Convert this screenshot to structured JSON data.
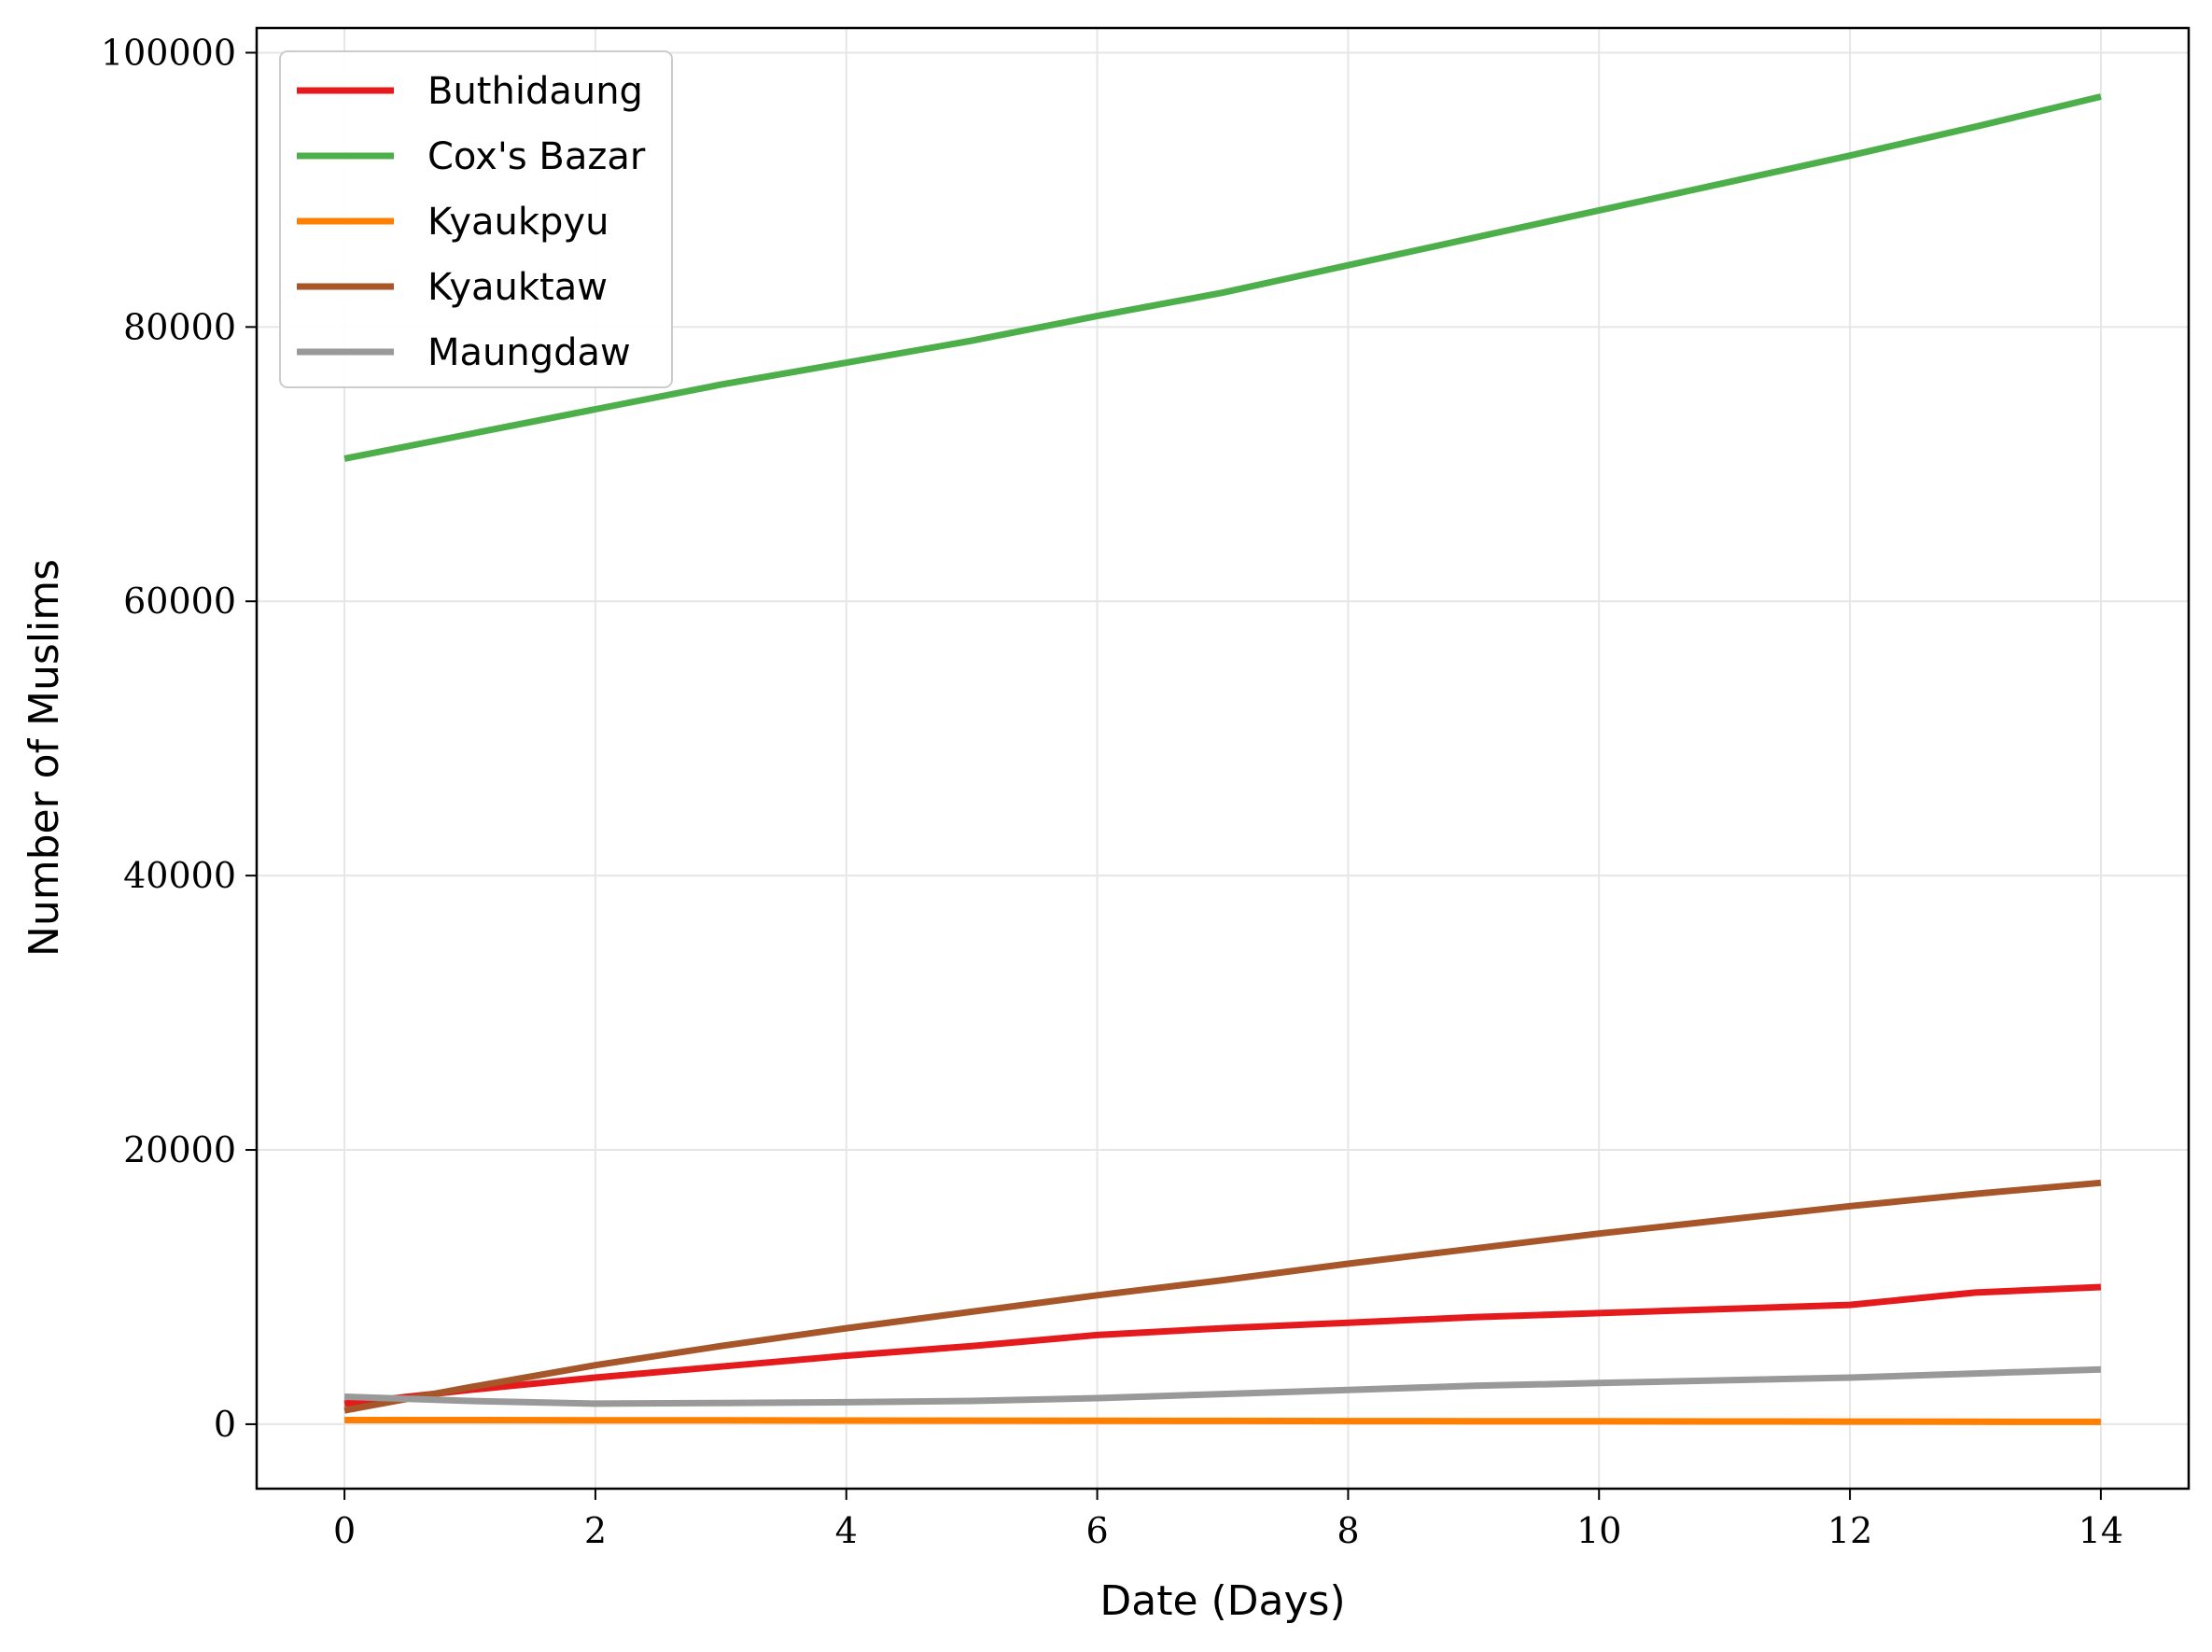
{
  "chart_data": {
    "type": "line",
    "xlabel": "Date (Days)",
    "ylabel": "Number of Muslims",
    "xlim": [
      -0.7,
      14.7
    ],
    "ylim": [
      -4700,
      101800
    ],
    "xticks": [
      0,
      2,
      4,
      6,
      8,
      10,
      12,
      14
    ],
    "yticks": [
      0,
      20000,
      40000,
      60000,
      80000,
      100000
    ],
    "grid": true,
    "legend_position": "top-left",
    "x": [
      0,
      1,
      2,
      3,
      4,
      5,
      6,
      7,
      8,
      9,
      10,
      11,
      12,
      13,
      14
    ],
    "series": [
      {
        "name": "Buthidaung",
        "color": "#e41a1c",
        "values": [
          1500,
          2500,
          3400,
          4200,
          5000,
          5700,
          6500,
          7000,
          7400,
          7800,
          8100,
          8400,
          8700,
          9600,
          10000
        ]
      },
      {
        "name": "Cox's Bazar",
        "color": "#4daf4a",
        "values": [
          70400,
          72200,
          74000,
          75800,
          77400,
          79000,
          80800,
          82500,
          84500,
          86500,
          88500,
          90500,
          92500,
          94600,
          96800
        ]
      },
      {
        "name": "Kyaukpyu",
        "color": "#ff7f00",
        "values": [
          300,
          300,
          290,
          280,
          270,
          260,
          250,
          240,
          230,
          220,
          210,
          200,
          190,
          180,
          170
        ]
      },
      {
        "name": "Kyauktaw",
        "color": "#a65628",
        "values": [
          1000,
          2700,
          4300,
          5700,
          7000,
          8200,
          9400,
          10500,
          11700,
          12800,
          13900,
          14900,
          15900,
          16800,
          17600
        ]
      },
      {
        "name": "Maungdaw",
        "color": "#999999",
        "values": [
          2000,
          1700,
          1500,
          1550,
          1600,
          1700,
          1900,
          2200,
          2500,
          2800,
          3000,
          3200,
          3400,
          3700,
          4000
        ]
      }
    ]
  }
}
